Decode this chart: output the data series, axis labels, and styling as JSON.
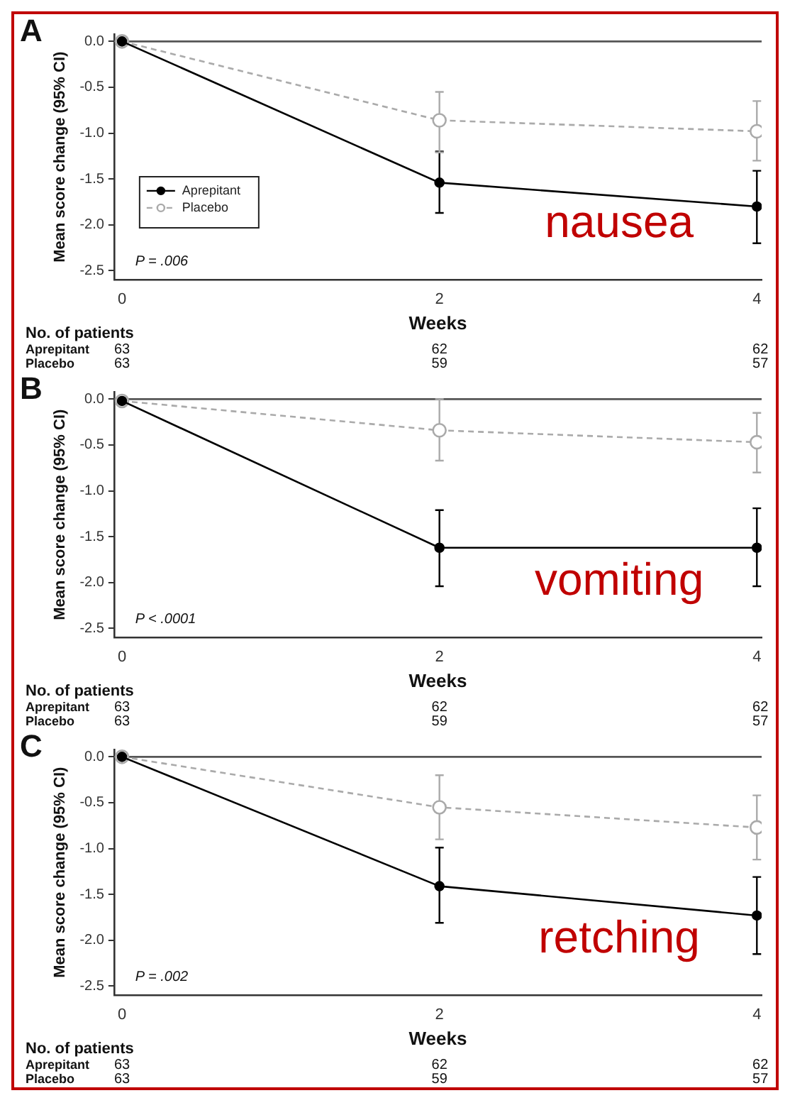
{
  "chart_data": [
    {
      "type": "line",
      "title": "A",
      "xlabel": "Weeks",
      "ylabel": "Mean score change (95% CI)",
      "x": [
        0,
        2,
        4
      ],
      "xlim": [
        -0.05,
        4.03
      ],
      "xticks": [
        0,
        2,
        4
      ],
      "ylim": [
        -2.6,
        0.08
      ],
      "yticks": [
        {
          "value": 0,
          "label": "0.0"
        },
        {
          "value": -0.5,
          "label": "-0.5"
        },
        {
          "value": -1,
          "label": "-1.0"
        },
        {
          "value": -1.5,
          "label": "-1.5"
        },
        {
          "value": -2,
          "label": "-2.0"
        },
        {
          "value": -2.5,
          "label": "-2.5"
        }
      ],
      "grid": false,
      "legend": "left",
      "marker": "circle",
      "series": [
        {
          "name": "Aprepitant",
          "color": "#000000",
          "values": [
            0,
            -1.54,
            -1.8
          ],
          "errors": [
            null,
            [
              -1.87,
              -1.2
            ],
            [
              -2.2,
              -1.41
            ]
          ]
        },
        {
          "name": "Placebo",
          "color": "#aaaaaa",
          "line_style": "dashed",
          "values": [
            0,
            -0.86,
            -0.98
          ],
          "errors": [
            null,
            [
              -1.21,
              -0.55
            ],
            [
              -1.3,
              -0.65
            ]
          ]
        }
      ],
      "ref_lines": [
        {
          "axis": "y",
          "value": 0,
          "color": "#555555"
        }
      ],
      "annotations": [
        "P = .006",
        "nausea",
        "No. of patients",
        "Aprepitant",
        "63",
        "62",
        "62",
        "Placebo",
        "63",
        "59",
        "57"
      ]
    },
    {
      "type": "line",
      "title": "B",
      "xlabel": "Weeks",
      "ylabel": "Mean score change (95% CI)",
      "x": [
        0,
        2,
        4
      ],
      "xlim": [
        -0.05,
        4.03
      ],
      "xticks": [
        0,
        2,
        4
      ],
      "ylim": [
        -2.6,
        0.08
      ],
      "yticks": [
        {
          "value": 0,
          "label": "0.0"
        },
        {
          "value": -0.5,
          "label": "-0.5"
        },
        {
          "value": -1,
          "label": "-1.0"
        },
        {
          "value": -1.5,
          "label": "-1.5"
        },
        {
          "value": -2,
          "label": "-2.0"
        },
        {
          "value": -2.5,
          "label": "-2.5"
        }
      ],
      "grid": false,
      "marker": "circle",
      "series": [
        {
          "color": "#000000",
          "values": [
            -0.02,
            -1.62,
            -1.62
          ],
          "errors": [
            null,
            [
              -2.04,
              -1.21
            ],
            [
              -2.04,
              -1.19
            ]
          ]
        },
        {
          "color": "#aaaaaa",
          "line_style": "dashed",
          "values": [
            -0.02,
            -0.34,
            -0.47
          ],
          "errors": [
            null,
            [
              -0.67,
              0
            ],
            [
              -0.8,
              -0.15
            ]
          ]
        }
      ],
      "ref_lines": [
        {
          "axis": "y",
          "value": 0,
          "color": "#555555"
        }
      ],
      "annotations": [
        "P < .0001",
        "vomiting",
        "No. of patients",
        "Aprepitant",
        "63",
        "62",
        "62",
        "Placebo",
        "63",
        "59",
        "57"
      ]
    },
    {
      "type": "line",
      "title": "C",
      "xlabel": "Weeks",
      "ylabel": "Mean score change (95% CI)",
      "x": [
        0,
        2,
        4
      ],
      "xlim": [
        -0.05,
        4.03
      ],
      "xticks": [
        0,
        2,
        4
      ],
      "ylim": [
        -2.6,
        0.08
      ],
      "yticks": [
        {
          "value": 0,
          "label": "0.0"
        },
        {
          "value": -0.5,
          "label": "-0.5"
        },
        {
          "value": -1,
          "label": "-1.0"
        },
        {
          "value": -1.5,
          "label": "-1.5"
        },
        {
          "value": -2,
          "label": "-2.0"
        },
        {
          "value": -2.5,
          "label": "-2.5"
        }
      ],
      "grid": false,
      "marker": "circle",
      "series": [
        {
          "color": "#000000",
          "values": [
            0,
            -1.41,
            -1.73
          ],
          "errors": [
            null,
            [
              -1.81,
              -0.99
            ],
            [
              -2.15,
              -1.31
            ]
          ]
        },
        {
          "color": "#aaaaaa",
          "line_style": "dashed",
          "values": [
            0,
            -0.55,
            -0.77
          ],
          "errors": [
            null,
            [
              -0.9,
              -0.2
            ],
            [
              -1.12,
              -0.42
            ]
          ]
        }
      ],
      "ref_lines": [
        {
          "axis": "y",
          "value": 0,
          "color": "#555555"
        }
      ],
      "annotations": [
        "P = .002",
        "retching",
        "No. of patients",
        "Aprepitant",
        "63",
        "62",
        "62",
        "Placebo",
        "63",
        "59",
        "57"
      ]
    }
  ]
}
